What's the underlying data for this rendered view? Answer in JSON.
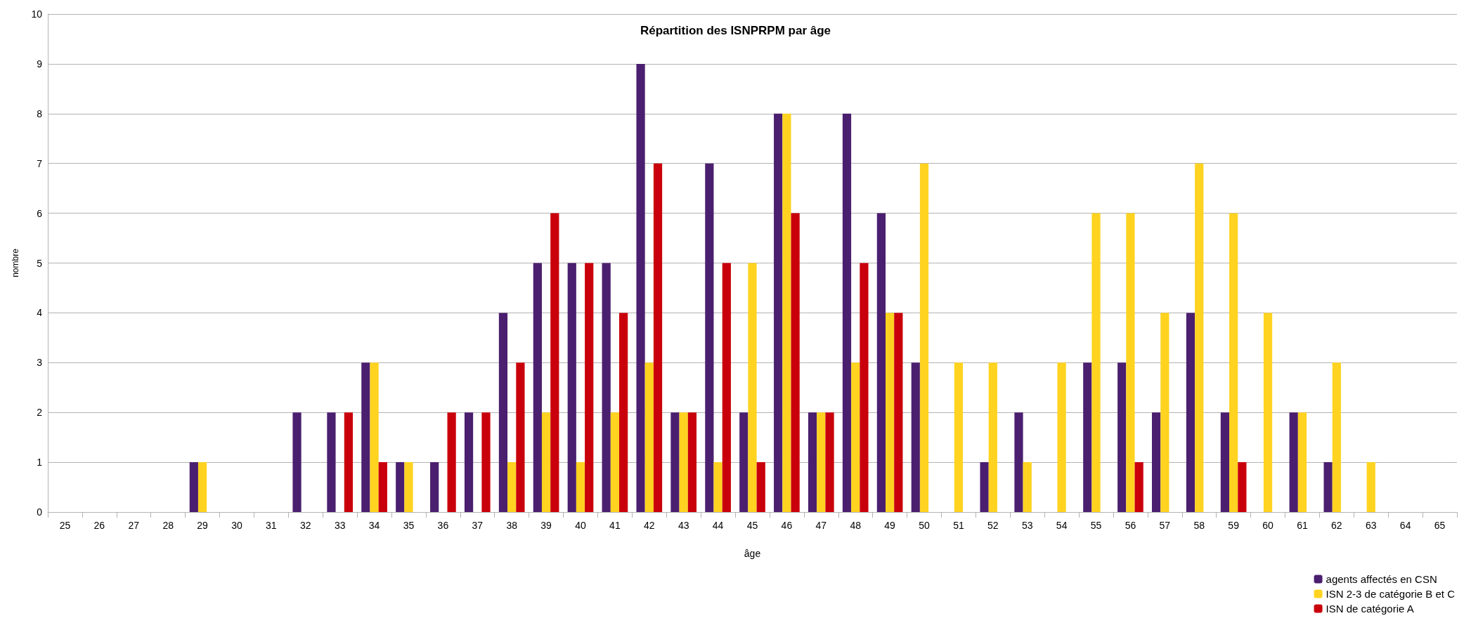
{
  "chart_data": {
    "type": "bar",
    "title": "Répartition des ISNPRPM par âge",
    "xlabel": "âge",
    "ylabel": "nombre",
    "categories": [
      "25",
      "26",
      "27",
      "28",
      "29",
      "30",
      "31",
      "32",
      "33",
      "34",
      "35",
      "36",
      "37",
      "38",
      "39",
      "40",
      "41",
      "42",
      "43",
      "44",
      "45",
      "46",
      "47",
      "48",
      "49",
      "50",
      "51",
      "52",
      "53",
      "54",
      "55",
      "56",
      "57",
      "58",
      "59",
      "60",
      "61",
      "62",
      "63",
      "64",
      "65"
    ],
    "series": [
      {
        "name": "agents affectés en CSN",
        "color": "#4b1f6f",
        "values": [
          0,
          0,
          0,
          0,
          1,
          0,
          0,
          2,
          2,
          3,
          1,
          1,
          2,
          4,
          5,
          5,
          5,
          9,
          2,
          7,
          2,
          8,
          2,
          8,
          6,
          3,
          0,
          1,
          2,
          0,
          3,
          3,
          2,
          4,
          2,
          0,
          2,
          1,
          0,
          0,
          0
        ]
      },
      {
        "name": "ISN 2-3 de catégorie B et C",
        "color": "#ffd320",
        "values": [
          0,
          0,
          0,
          0,
          1,
          0,
          0,
          0,
          0,
          3,
          1,
          0,
          0,
          1,
          2,
          1,
          2,
          3,
          2,
          1,
          5,
          8,
          2,
          3,
          4,
          7,
          3,
          3,
          1,
          3,
          6,
          6,
          4,
          7,
          6,
          4,
          2,
          3,
          1,
          0,
          0
        ]
      },
      {
        "name": "ISN de catégorie A",
        "color": "#c9000b",
        "values": [
          0,
          0,
          0,
          0,
          0,
          0,
          0,
          0,
          2,
          1,
          0,
          2,
          2,
          3,
          6,
          5,
          4,
          7,
          2,
          5,
          1,
          6,
          2,
          5,
          4,
          0,
          0,
          0,
          0,
          0,
          0,
          1,
          0,
          0,
          1,
          0,
          0,
          0,
          0,
          0,
          0
        ]
      }
    ],
    "ylim": [
      0,
      10
    ],
    "yticks": [
      0,
      1,
      2,
      3,
      4,
      5,
      6,
      7,
      8,
      9,
      10
    ],
    "grid": "y",
    "legend": "bottom right"
  }
}
